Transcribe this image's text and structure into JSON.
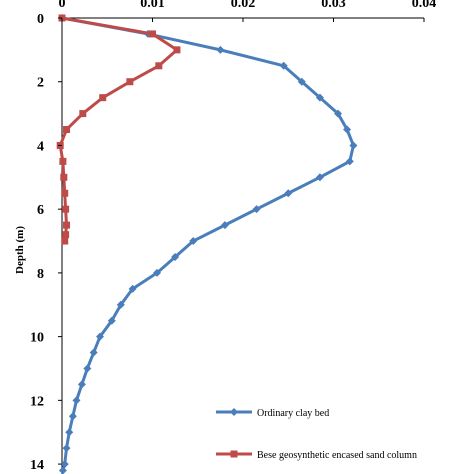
{
  "chart_data": {
    "type": "line",
    "title": "",
    "xlabel": "",
    "ylabel": "Depth (m)",
    "xlim": [
      0,
      0.04
    ],
    "ylim": [
      14.5,
      0
    ],
    "x_ticks": [
      "0",
      "0.01",
      "0.02",
      "0.03",
      "0.04"
    ],
    "y_ticks": [
      "0",
      "2",
      "4",
      "6",
      "8",
      "10",
      "12",
      "14"
    ],
    "x_axis_position": "top",
    "y_axis_inverted": true,
    "grid": false,
    "legend_position": "bottom-right",
    "series": [
      {
        "name": "Ordinary clay bed",
        "color": "#4a7ebb",
        "marker": "diamond",
        "points": [
          [
            0,
            0
          ],
          [
            0.0095,
            0.5
          ],
          [
            0.0175,
            1.0
          ],
          [
            0.0245,
            1.5
          ],
          [
            0.0265,
            2.0
          ],
          [
            0.0285,
            2.5
          ],
          [
            0.0305,
            3.0
          ],
          [
            0.0315,
            3.5
          ],
          [
            0.0322,
            4.0
          ],
          [
            0.0318,
            4.5
          ],
          [
            0.0285,
            5.0
          ],
          [
            0.025,
            5.5
          ],
          [
            0.0215,
            6.0
          ],
          [
            0.018,
            6.5
          ],
          [
            0.0145,
            7.0
          ],
          [
            0.0125,
            7.5
          ],
          [
            0.0105,
            8.0
          ],
          [
            0.0078,
            8.5
          ],
          [
            0.0065,
            9.0
          ],
          [
            0.0055,
            9.5
          ],
          [
            0.0042,
            10.0
          ],
          [
            0.0035,
            10.5
          ],
          [
            0.0028,
            11.0
          ],
          [
            0.0022,
            11.5
          ],
          [
            0.0016,
            12.0
          ],
          [
            0.0012,
            12.5
          ],
          [
            0.0008,
            13.0
          ],
          [
            0.0005,
            13.5
          ],
          [
            0.0003,
            14.0
          ],
          [
            0.0001,
            14.2
          ]
        ]
      },
      {
        "name": "Bese geosynthetic encased sand column",
        "color": "#be4b48",
        "marker": "square",
        "points": [
          [
            0,
            0
          ],
          [
            0.01,
            0.5
          ],
          [
            0.0127,
            1.0
          ],
          [
            0.0107,
            1.5
          ],
          [
            0.0075,
            2.0
          ],
          [
            0.0045,
            2.5
          ],
          [
            0.0023,
            3.0
          ],
          [
            0.0005,
            3.5
          ],
          [
            -0.0002,
            4.0
          ],
          [
            0.0001,
            4.5
          ],
          [
            0.0002,
            5.0
          ],
          [
            0.0003,
            5.5
          ],
          [
            0.0004,
            6.0
          ],
          [
            0.0005,
            6.5
          ],
          [
            0.0004,
            6.8
          ],
          [
            0.0003,
            7.0
          ]
        ]
      }
    ]
  }
}
